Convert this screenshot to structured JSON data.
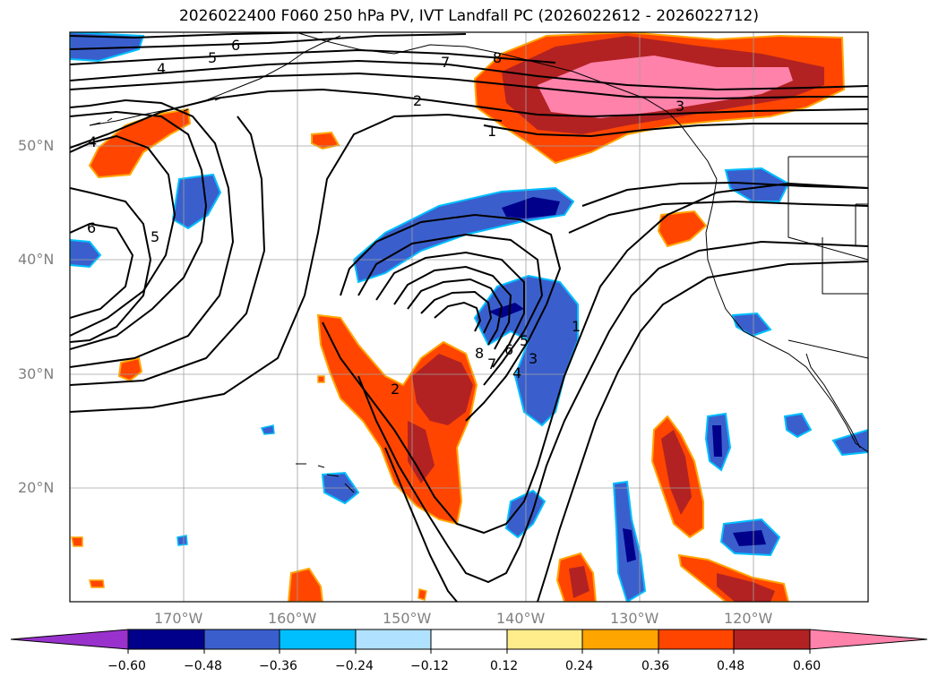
{
  "title": "2026022400 F060 250 hPa PV, IVT Landfall PC (2026022612 - 2026022712)",
  "lat_labels": [
    "50°N",
    "40°N",
    "30°N",
    "20°N"
  ],
  "lon_labels": [
    "170°W",
    "160°W",
    "150°W",
    "140°W",
    "130°W",
    "120°W"
  ],
  "colorbar": {
    "ticks": [
      "−0.60",
      "−0.48",
      "−0.36",
      "−0.24",
      "−0.12",
      "0.12",
      "0.24",
      "0.36",
      "0.48",
      "0.60"
    ],
    "colors": [
      "#9932cc",
      "#00008b",
      "#3a5fcd",
      "#00bfff",
      "#b0e2ff",
      "#ffffff",
      "#ffec8b",
      "#ffa500",
      "#ff4500",
      "#b22222",
      "#ff82ab"
    ]
  },
  "contour_labels": [
    "6",
    "5",
    "4",
    "7",
    "8",
    "2",
    "1",
    "3",
    "4",
    "6",
    "5",
    "8",
    "7",
    "6",
    "5",
    "4",
    "3",
    "2",
    "1"
  ]
}
